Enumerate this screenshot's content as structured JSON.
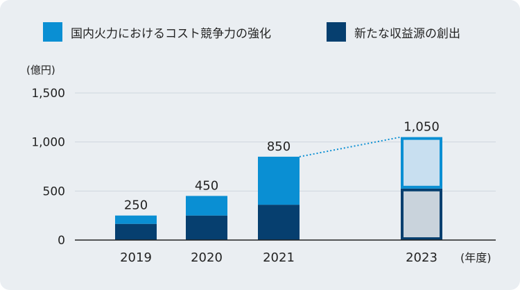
{
  "chart_data": {
    "type": "bar",
    "stacked": true,
    "categories": [
      "2019",
      "2020",
      "2021",
      "2023"
    ],
    "series": [
      {
        "name": "新たな収益源の創出",
        "values": [
          165,
          250,
          360,
          525
        ],
        "color": "#063f6f"
      },
      {
        "name": "国内火力におけるコスト競争力の強化",
        "values": [
          85,
          200,
          490,
          525
        ],
        "color": "#0a8fd3"
      }
    ],
    "totals": [
      "250",
      "450",
      "850",
      "1,050"
    ],
    "ylabel": "(億円)",
    "xlabel": "(年度)",
    "ylim": [
      0,
      1500
    ],
    "yticks": [
      0,
      500,
      1000,
      1500
    ],
    "ytick_labels": [
      "0",
      "500",
      "1,000",
      "1,500"
    ],
    "projected_category": "2023",
    "projected_colors": {
      "bottom_fill": "#c9d3dc",
      "top_fill": "#c8dff0"
    },
    "trend_line": {
      "from": "2021",
      "to": "2023",
      "style": "dotted",
      "color": "#0a8fd3"
    },
    "grid": true
  }
}
